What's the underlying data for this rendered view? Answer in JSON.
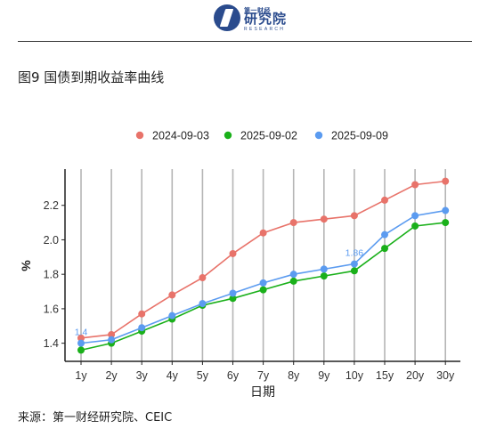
{
  "header": {
    "logo_top": "第一财经",
    "logo_main": "研究院",
    "logo_sub": "RESEARCH"
  },
  "figure_title": "图9 国债到期收益率曲线",
  "source": "来源：第一财经研究院、CEIC",
  "chart_data": {
    "type": "line",
    "categories": [
      "1y",
      "2y",
      "3y",
      "4y",
      "5y",
      "6y",
      "7y",
      "8y",
      "9y",
      "10y",
      "15y",
      "20y",
      "30y"
    ],
    "series": [
      {
        "name": "2024-09-03",
        "color": "#e8736a",
        "values": [
          1.43,
          1.45,
          1.57,
          1.68,
          1.78,
          1.92,
          2.04,
          2.1,
          2.12,
          2.14,
          2.23,
          2.32,
          2.34
        ]
      },
      {
        "name": "2025-09-02",
        "color": "#1ab01a",
        "values": [
          1.36,
          1.4,
          1.47,
          1.54,
          1.62,
          1.66,
          1.71,
          1.76,
          1.79,
          1.82,
          1.95,
          2.08,
          2.1
        ]
      },
      {
        "name": "2025-09-09",
        "color": "#5b9bf0",
        "values": [
          1.4,
          1.42,
          1.49,
          1.56,
          1.63,
          1.69,
          1.75,
          1.8,
          1.83,
          1.86,
          2.03,
          2.14,
          2.17
        ]
      }
    ],
    "annotations": [
      {
        "series": 2,
        "index": 0,
        "text": "1.4"
      },
      {
        "series": 2,
        "index": 9,
        "text": "1.86"
      }
    ],
    "xlabel": "日期",
    "ylabel": "%",
    "ylim": [
      1.3,
      2.4
    ],
    "yticks": [
      "1.4",
      "1.6",
      "1.8",
      "2.0",
      "2.2"
    ],
    "grid": "vertical",
    "legend_position": "top"
  }
}
